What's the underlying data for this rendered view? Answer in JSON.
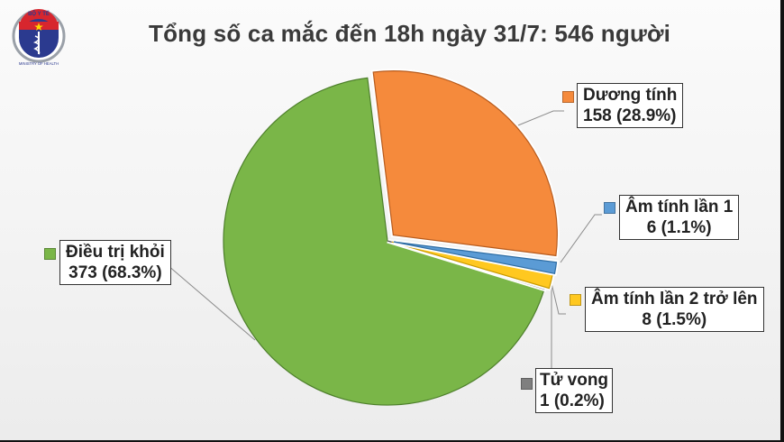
{
  "header": {
    "title": "Tổng số ca mắc đến 18h ngày 31/7: 546 người",
    "logo": {
      "top_text": "BỘ Y TẾ",
      "bottom_text": "MINISTRY OF HEALTH",
      "icon": "caduceus-icon"
    }
  },
  "colors": {
    "duong_tinh": "#f58a3c",
    "am_tinh_1": "#5b9bd5",
    "am_tinh_2": "#ffc820",
    "tu_vong": "#7f7f7f",
    "dieu_tri_khoi": "#7ab648"
  },
  "chart_data": {
    "type": "pie",
    "title": "Tổng số ca mắc đến 18h ngày 31/7: 546 người",
    "total": 546,
    "categories": [
      "Dương tính",
      "Âm tính lần 1",
      "Âm tính lần 2 trở lên",
      "Tử vong",
      "Điều trị khỏi"
    ],
    "values": [
      158,
      6,
      8,
      1,
      373
    ],
    "percentages": [
      28.9,
      1.1,
      1.5,
      0.2,
      68.3
    ],
    "colors": [
      "#f58a3c",
      "#5b9bd5",
      "#ffc820",
      "#7f7f7f",
      "#7ab648"
    ],
    "exploded": [
      true,
      true,
      true,
      false,
      false
    ],
    "start_angle_deg": -7,
    "direction": "clockwise",
    "legend_position": "data labels with leader lines",
    "labels": [
      {
        "name": "Dương tính",
        "value_text": "158 (28.9%)"
      },
      {
        "name": "Âm tính lần 1",
        "value_text": "6 (1.1%)"
      },
      {
        "name": "Âm tính lần 2 trở lên",
        "value_text": "8 (1.5%)"
      },
      {
        "name": "Tử vong",
        "value_text": "1 (0.2%)"
      },
      {
        "name": "Điều trị khỏi",
        "value_text": "373 (68.3%)"
      }
    ]
  }
}
